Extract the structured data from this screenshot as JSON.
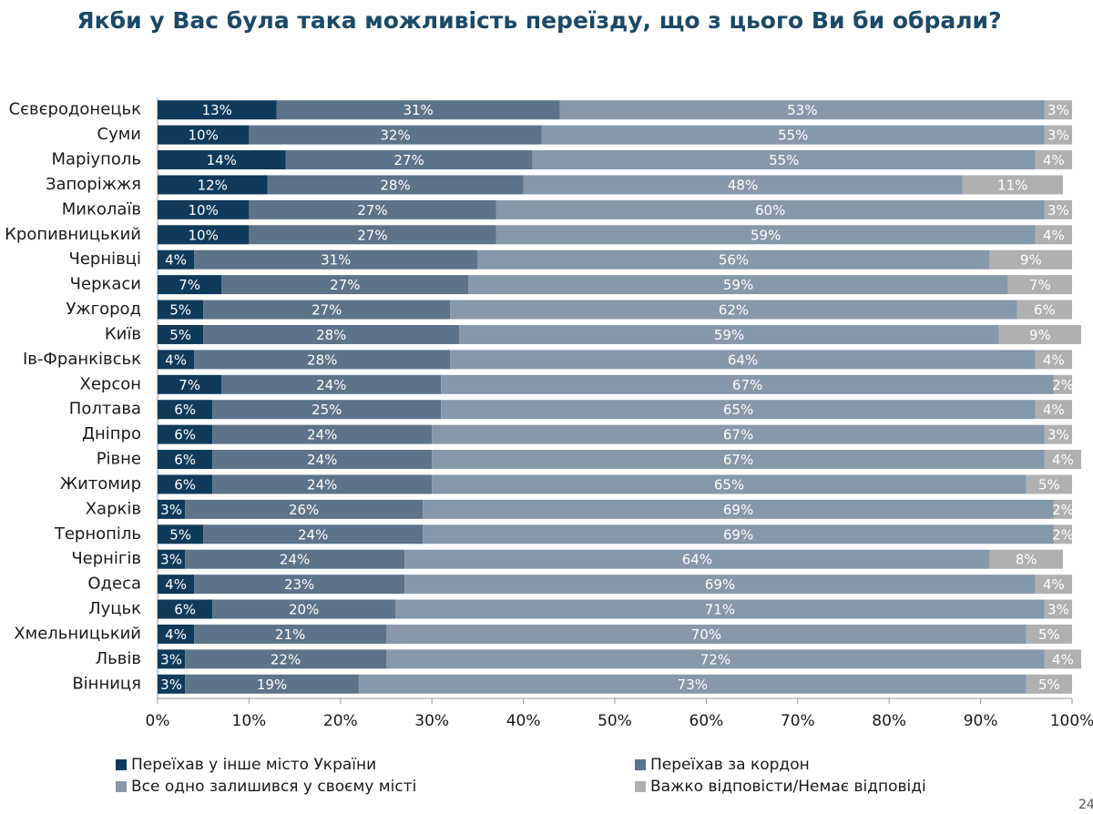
{
  "chart_data": {
    "type": "stacked-bar",
    "title": "Якби у Вас була така можливість переїзду, що з цього Ви би обрали?",
    "categories": [
      "Сєвєродонецьк",
      "Суми",
      "Маріуполь",
      "Запоріжжя",
      "Миколаїв",
      "Кропивницький",
      "Чернівці",
      "Черкаси",
      "Ужгород",
      "Київ",
      "Ів-Франківськ",
      "Херсон",
      "Полтава",
      "Дніпро",
      "Рівне",
      "Житомир",
      "Харків",
      "Тернопіль",
      "Чернігів",
      "Одеса",
      "Луцьк",
      "Хмельницький",
      "Львів",
      "Вінниця"
    ],
    "series": [
      {
        "name": "Переїхав у інше місто України",
        "color": "#0f3a5a",
        "values": [
          13,
          10,
          14,
          12,
          10,
          10,
          4,
          7,
          5,
          5,
          4,
          7,
          6,
          6,
          6,
          6,
          3,
          5,
          3,
          4,
          6,
          4,
          3,
          3
        ],
        "value_labels": [
          "13%",
          "10%",
          "14%",
          "12%",
          "10%",
          "10%",
          "4%",
          "7%",
          "5%",
          "5%",
          "4%",
          "7%",
          "6%",
          "6%",
          "6%",
          "6%",
          "3%",
          "5%",
          "3%",
          "4%",
          "6%",
          "4%",
          "3%",
          "3%"
        ]
      },
      {
        "name": "Переїхав за кордон",
        "color": "#5c7389",
        "values": [
          31,
          32,
          27,
          28,
          27,
          27,
          31,
          27,
          27,
          28,
          28,
          24,
          25,
          24,
          24,
          24,
          26,
          24,
          24,
          23,
          20,
          21,
          22,
          19
        ],
        "value_labels": [
          "31%",
          "32%",
          "27%",
          "28%",
          "27%",
          "27%",
          "31%",
          "27%",
          "27%",
          "28%",
          "28%",
          "24%",
          "25%",
          "24%",
          "24%",
          "24%",
          "26%",
          "24%",
          "24%",
          "23%",
          "20%",
          "21%",
          "22%",
          "19%"
        ]
      },
      {
        "name": "Все одно залишився у своєму місті",
        "color": "#8698aa",
        "values": [
          53,
          55,
          55,
          48,
          60,
          59,
          56,
          59,
          62,
          59,
          64,
          67,
          65,
          67,
          67,
          65,
          69,
          69,
          64,
          69,
          71,
          70,
          72,
          73
        ],
        "value_labels": [
          "53%",
          "55%",
          "55%",
          "48%",
          "60%",
          "59%",
          "56%",
          "59%",
          "62%",
          "59%",
          "64%",
          "67%",
          "65%",
          "67%",
          "67%",
          "65%",
          "69%",
          "69%",
          "64%",
          "69%",
          "71%",
          "70%",
          "72%",
          "73%"
        ]
      },
      {
        "name": "Важко відповісти/Немає відповіді",
        "color": "#b0b0b2",
        "values": [
          3,
          3,
          4,
          11,
          3,
          4,
          9,
          7,
          6,
          9,
          4,
          2,
          4,
          3,
          4,
          5,
          2,
          2,
          8,
          4,
          3,
          5,
          4,
          5
        ],
        "value_labels": [
          "3%",
          "3%",
          "4%",
          "11%",
          "3%",
          "4%",
          "9%",
          "7%",
          "6%",
          "9%",
          "4%",
          "2%",
          "4%",
          "3%",
          "4%",
          "5%",
          "2%",
          "2%",
          "8%",
          "4%",
          "3%",
          "5%",
          "4%",
          "5%"
        ]
      }
    ],
    "xlim": [
      0,
      100
    ],
    "xticks": [
      {
        "value": 0,
        "label": "0%"
      },
      {
        "value": 10,
        "label": "10%"
      },
      {
        "value": 20,
        "label": "20%"
      },
      {
        "value": 30,
        "label": "30%"
      },
      {
        "value": 40,
        "label": "40%"
      },
      {
        "value": 50,
        "label": "50%"
      },
      {
        "value": 60,
        "label": "60%"
      },
      {
        "value": 70,
        "label": "70%"
      },
      {
        "value": 80,
        "label": "80%"
      },
      {
        "value": 90,
        "label": "90%"
      },
      {
        "value": 100,
        "label": "100%"
      }
    ],
    "grid": false
  },
  "page_number": "24"
}
